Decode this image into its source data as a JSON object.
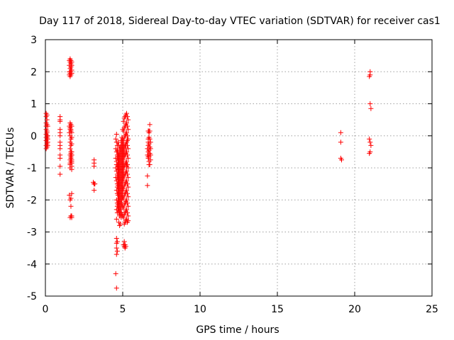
{
  "chart_data": {
    "type": "scatter",
    "title": "Day 117 of 2018, Sidereal Day-to-day VTEC variation (SDTVAR) for receiver cas1",
    "xlabel": "GPS time / hours",
    "ylabel": "SDTVAR / TECUs",
    "xlim": [
      0,
      25
    ],
    "ylim": [
      -5,
      3
    ],
    "xticks": [
      0,
      5,
      10,
      15,
      20,
      25
    ],
    "yticks": [
      -5,
      -4,
      -3,
      -2,
      -1,
      0,
      1,
      2,
      3
    ],
    "grid": true,
    "marker": "+",
    "series_color": "#ff0000",
    "series": [
      {
        "name": "SDTVAR",
        "x": [
          0.05,
          0.05,
          0.05,
          0.05,
          0.05,
          0.05,
          0.05,
          0.05,
          0.05,
          0.05,
          0.1,
          0.1,
          0.1,
          0.1,
          0.1,
          0.1,
          0.1,
          0.1,
          0.1,
          0.1,
          0.1,
          0.15,
          0.15,
          0.15,
          0.15,
          0.15,
          0.95,
          0.95,
          0.95,
          0.95,
          0.95,
          0.95,
          0.95,
          0.95,
          0.95,
          0.95,
          0.95,
          0.95,
          0.95,
          1.55,
          1.55,
          1.55,
          1.55,
          1.55,
          1.55,
          1.6,
          1.6,
          1.6,
          1.6,
          1.6,
          1.6,
          1.6,
          1.6,
          1.6,
          1.6,
          1.65,
          1.65,
          1.65,
          1.65,
          1.65,
          1.65,
          1.65,
          1.65,
          1.65,
          1.65,
          1.65,
          1.7,
          1.7,
          1.7,
          1.7,
          1.7,
          1.7,
          1.7,
          1.7,
          1.7,
          1.7,
          1.6,
          1.6,
          1.6,
          1.6,
          1.6,
          1.65,
          1.65,
          1.65,
          1.65,
          1.7,
          1.7,
          1.7,
          1.7,
          1.7,
          1.7,
          1.55,
          1.6,
          1.65,
          1.7,
          1.6,
          1.65,
          1.7,
          1.65,
          1.7,
          1.6,
          1.65,
          3.15,
          3.15,
          3.15,
          3.1,
          3.15,
          3.2,
          3.15,
          3.15,
          4.55,
          4.55,
          4.55,
          4.55,
          4.55,
          4.6,
          4.6,
          4.6,
          4.6,
          4.6,
          4.6,
          4.6,
          4.6,
          4.6,
          4.6,
          4.6,
          4.65,
          4.65,
          4.65,
          4.65,
          4.65,
          4.65,
          4.65,
          4.65,
          4.65,
          4.65,
          4.65,
          4.65,
          4.65,
          4.65,
          4.7,
          4.7,
          4.7,
          4.7,
          4.7,
          4.7,
          4.7,
          4.7,
          4.7,
          4.7,
          4.7,
          4.7,
          4.7,
          4.7,
          4.7,
          4.75,
          4.75,
          4.75,
          4.75,
          4.75,
          4.75,
          4.75,
          4.75,
          4.75,
          4.75,
          4.75,
          4.75,
          4.75,
          4.75,
          4.75,
          4.75,
          4.8,
          4.8,
          4.8,
          4.8,
          4.8,
          4.8,
          4.8,
          4.8,
          4.8,
          4.8,
          4.8,
          4.8,
          4.8,
          4.8,
          4.8,
          4.8,
          4.85,
          4.85,
          4.85,
          4.85,
          4.85,
          4.85,
          4.85,
          4.85,
          4.85,
          4.85,
          4.85,
          4.85,
          4.85,
          4.85,
          4.85,
          4.85,
          4.9,
          4.9,
          4.9,
          4.9,
          4.9,
          4.9,
          4.9,
          4.9,
          4.9,
          4.9,
          4.9,
          4.9,
          4.9,
          4.9,
          4.9,
          4.9,
          4.9,
          4.95,
          4.95,
          4.95,
          4.95,
          4.95,
          4.95,
          4.95,
          4.95,
          4.95,
          4.95,
          4.95,
          4.95,
          4.95,
          4.95,
          4.95,
          4.95,
          5.0,
          5.0,
          5.0,
          5.0,
          5.0,
          5.0,
          5.0,
          5.0,
          5.0,
          5.0,
          5.0,
          5.0,
          5.0,
          5.0,
          5.0,
          5.0,
          5.05,
          5.05,
          5.05,
          5.05,
          5.05,
          5.05,
          5.05,
          5.05,
          5.05,
          5.05,
          5.05,
          5.05,
          5.05,
          5.05,
          5.05,
          5.05,
          5.1,
          5.1,
          5.1,
          5.1,
          5.1,
          5.1,
          5.1,
          5.1,
          5.1,
          5.1,
          5.1,
          5.1,
          5.1,
          5.1,
          5.1,
          5.15,
          5.15,
          5.15,
          5.15,
          5.15,
          5.15,
          5.15,
          5.15,
          5.15,
          5.15,
          5.15,
          5.15,
          5.15,
          5.15,
          5.2,
          5.2,
          5.2,
          5.2,
          5.2,
          5.2,
          5.2,
          5.2,
          5.2,
          5.2,
          5.2,
          5.2,
          5.2,
          5.2,
          5.25,
          5.25,
          5.25,
          5.25,
          5.25,
          5.25,
          5.25,
          5.25,
          5.25,
          5.25,
          5.25,
          5.25,
          5.25,
          5.3,
          5.3,
          5.3,
          5.3,
          5.3,
          5.3,
          5.3,
          5.3,
          5.3,
          5.3,
          5.3,
          5.3,
          5.3,
          5.35,
          5.35,
          5.35,
          5.35,
          5.35,
          5.35,
          5.35,
          5.35,
          5.35,
          5.35,
          5.35,
          5.35,
          4.6,
          4.6,
          4.6,
          4.65,
          4.65,
          4.6,
          4.55,
          4.6,
          6.6,
          6.6,
          6.6,
          6.65,
          6.65,
          6.65,
          6.65,
          6.65,
          6.65,
          6.7,
          6.7,
          6.7,
          6.7,
          6.7,
          6.7,
          6.7,
          6.75,
          6.75,
          6.75,
          6.75,
          6.75,
          6.75,
          6.8,
          6.8,
          6.8,
          6.8,
          6.65,
          6.6,
          6.7,
          19.1,
          19.1,
          19.1,
          19.15,
          20.95,
          21.0,
          21.0,
          21.0,
          21.05,
          20.95,
          21.0,
          21.05,
          20.95,
          21.0
        ],
        "y": [
          0.7,
          0.6,
          0.4,
          0.2,
          0.05,
          -0.05,
          -0.15,
          -0.3,
          -0.4,
          0.3,
          0.65,
          0.5,
          0.35,
          0.15,
          0.0,
          -0.1,
          -0.2,
          -0.25,
          -0.35,
          0.1,
          -0.05,
          0.3,
          0.0,
          -0.2,
          -0.3,
          -0.1,
          0.6,
          0.5,
          0.45,
          0.2,
          0.0,
          -0.2,
          -0.4,
          -0.6,
          -0.7,
          -0.95,
          -1.2,
          0.1,
          -0.3,
          2.35,
          2.2,
          2.0,
          1.9,
          0.3,
          0.1,
          2.4,
          2.3,
          2.1,
          1.95,
          1.85,
          0.4,
          0.2,
          0.0,
          -0.2,
          -0.4,
          2.35,
          2.25,
          2.15,
          2.0,
          1.9,
          0.35,
          0.15,
          -0.1,
          -0.3,
          -0.5,
          -0.7,
          2.3,
          2.2,
          2.05,
          1.95,
          0.3,
          0.1,
          -0.05,
          -0.25,
          -0.6,
          -0.8,
          -0.6,
          -0.75,
          -0.85,
          -0.9,
          -1.0,
          -0.55,
          -0.65,
          -0.7,
          -0.8,
          -0.5,
          -0.6,
          -0.75,
          -0.85,
          -0.95,
          -1.05,
          -1.85,
          -2.0,
          -2.2,
          -2.5,
          -2.55,
          -2.5,
          -2.55,
          -1.95,
          -1.8,
          0.25,
          0.2,
          -0.75,
          -0.85,
          -0.95,
          -1.45,
          -1.5,
          -1.5,
          -1.5,
          -1.7,
          -0.1,
          -0.4,
          -0.7,
          -1.0,
          -1.3,
          0.05,
          -0.2,
          -0.5,
          -0.8,
          -1.1,
          -1.4,
          -1.7,
          -2.0,
          -2.3,
          -2.6,
          -0.9,
          -0.3,
          -0.6,
          -0.9,
          -1.2,
          -1.5,
          -1.8,
          -2.1,
          -2.4,
          -1.0,
          -1.3,
          -0.7,
          -1.6,
          -2.2,
          -0.45,
          -0.2,
          -0.5,
          -0.8,
          -1.1,
          -1.4,
          -1.7,
          -2.0,
          -2.3,
          -0.65,
          -0.95,
          -1.25,
          -1.55,
          -1.85,
          -2.15,
          -1.05,
          -0.3,
          -0.6,
          -0.9,
          -1.2,
          -1.5,
          -1.8,
          -2.1,
          -2.4,
          -2.7,
          -0.75,
          -1.05,
          -1.35,
          -1.65,
          -1.95,
          -2.25,
          -1.5,
          -0.4,
          -0.7,
          -1.0,
          -1.3,
          -1.6,
          -1.9,
          -2.2,
          -2.5,
          -2.8,
          -0.55,
          -0.85,
          -1.15,
          -1.45,
          -1.75,
          -2.05,
          -2.35,
          -0.35,
          -0.65,
          -0.95,
          -1.25,
          -1.55,
          -1.85,
          -2.15,
          -2.45,
          -2.75,
          -0.5,
          -0.8,
          -1.1,
          -1.4,
          -1.7,
          -2.0,
          -2.3,
          -0.15,
          -0.45,
          -0.75,
          -1.05,
          -1.35,
          -1.65,
          -1.95,
          -2.25,
          -2.55,
          -0.3,
          -0.6,
          -0.9,
          -1.2,
          -1.5,
          -1.8,
          -2.1,
          -2.4,
          -0.05,
          -0.35,
          -0.65,
          -0.95,
          -1.25,
          -1.55,
          -1.85,
          -2.15,
          -2.45,
          -0.2,
          -0.5,
          -0.8,
          -1.1,
          -1.4,
          -1.7,
          -2.0,
          0.2,
          -0.1,
          -0.4,
          -0.7,
          -1.0,
          -1.3,
          -1.6,
          -1.9,
          -2.2,
          -2.5,
          -0.25,
          -0.55,
          -0.85,
          -1.15,
          -1.45,
          -1.75,
          0.45,
          0.15,
          -0.15,
          -0.45,
          -0.75,
          -1.05,
          -1.35,
          -1.65,
          -1.95,
          -2.25,
          -2.55,
          -0.3,
          -0.6,
          -0.9,
          -1.2,
          -3.4,
          0.55,
          0.25,
          -0.05,
          -0.35,
          -0.65,
          -0.95,
          -1.25,
          -1.55,
          -1.85,
          -2.15,
          -2.45,
          -2.75,
          -3.3,
          -3.45,
          -0.5,
          0.6,
          0.3,
          0.0,
          -0.3,
          -0.6,
          -0.9,
          -1.2,
          -1.5,
          -1.8,
          -2.1,
          -2.4,
          -2.7,
          -3.4,
          -3.5,
          0.65,
          0.35,
          0.05,
          -0.25,
          -0.55,
          -0.85,
          -1.15,
          -1.45,
          -1.75,
          -2.05,
          -2.35,
          -2.65,
          -3.45,
          -0.4,
          0.7,
          0.4,
          0.1,
          -0.2,
          -0.5,
          -0.8,
          -1.1,
          -1.4,
          -1.7,
          -2.0,
          -2.3,
          -2.6,
          -0.95,
          0.6,
          0.3,
          0.0,
          -0.3,
          -0.6,
          -0.9,
          -1.2,
          -1.5,
          -1.8,
          -2.1,
          -2.4,
          -2.7,
          -0.15,
          0.5,
          0.2,
          -0.1,
          -0.4,
          -0.7,
          -1.0,
          -1.3,
          -1.6,
          -1.9,
          -2.2,
          -2.5,
          -2.65,
          -3.2,
          -3.35,
          -3.5,
          -3.3,
          -3.6,
          -3.7,
          -4.3,
          -4.75,
          -0.6,
          -1.25,
          -1.55,
          0.15,
          -0.1,
          -0.3,
          -0.5,
          -0.7,
          -0.2,
          0.15,
          0.1,
          -0.05,
          -0.25,
          -0.45,
          -0.65,
          -0.8,
          0.35,
          0.15,
          -0.1,
          -0.35,
          -0.55,
          -0.9,
          -0.2,
          -0.4,
          -0.6,
          -0.75,
          -0.65,
          -0.4,
          -0.9,
          0.1,
          -0.2,
          -0.7,
          -0.75,
          1.85,
          2.0,
          1.9,
          1.0,
          0.85,
          -0.1,
          -0.2,
          -0.3,
          -0.55,
          -0.5
        ]
      }
    ]
  }
}
